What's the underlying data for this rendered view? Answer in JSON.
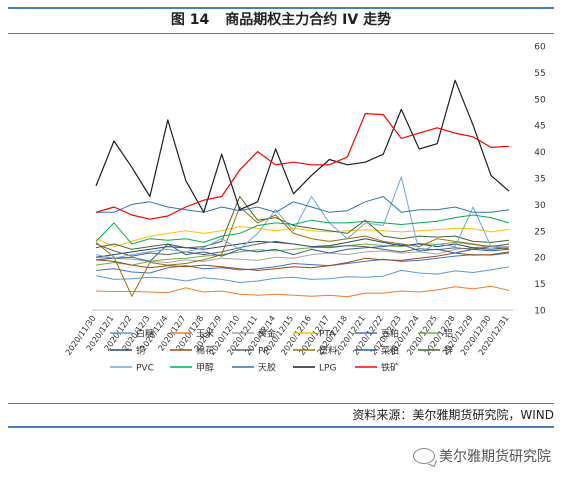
{
  "header": {
    "figure_number": "图 14",
    "title": "商品期权主力合约 IV 走势"
  },
  "footer": {
    "source": "资料来源：美尔雅期货研究院，WIND",
    "watermark": "美尔雅期货研究院"
  },
  "chart_data": {
    "type": "line",
    "ylim": [
      10,
      60
    ],
    "yticks": [
      10,
      15,
      20,
      25,
      30,
      35,
      40,
      45,
      50,
      55,
      60
    ],
    "y_axis_side": "right",
    "grid": false,
    "legend_position": "bottom",
    "categories": [
      "2020/11/30",
      "2020/12/1",
      "2020/12/2",
      "2020/12/3",
      "2020/12/4",
      "2020/12/7",
      "2020/12/8",
      "2020/12/9",
      "2020/12/10",
      "2020/12/11",
      "2020/12/14",
      "2020/12/15",
      "2020/12/16",
      "2020/12/17",
      "2020/12/18",
      "2020/12/21",
      "2020/12/22",
      "2020/12/23",
      "2020/12/24",
      "2020/12/25",
      "2020/12/28",
      "2020/12/29",
      "2020/12/30",
      "2020/12/31"
    ],
    "series": [
      {
        "name": "白糖",
        "color": "#5b9bd5",
        "values": [
          16.5,
          15.8,
          15.9,
          16.2,
          16.0,
          15.5,
          16.1,
          15.8,
          15.2,
          15.5,
          16.0,
          16.2,
          15.8,
          15.9,
          16.3,
          16.2,
          16.4,
          17.5,
          17.0,
          16.8,
          17.4,
          17.1,
          17.6,
          18.2
        ]
      },
      {
        "name": "玉米",
        "color": "#ed7d31",
        "values": [
          13.6,
          13.5,
          13.5,
          13.4,
          13.3,
          14.2,
          13.4,
          13.6,
          13.0,
          12.8,
          13.0,
          12.8,
          12.6,
          12.8,
          12.5,
          13.2,
          13.2,
          13.6,
          13.4,
          13.8,
          14.4,
          14.0,
          14.5,
          13.7
        ]
      },
      {
        "name": "黄金",
        "color": "#a5a5a5",
        "values": [
          20.0,
          19.8,
          19.6,
          19.2,
          19.0,
          19.5,
          19.2,
          19.8,
          19.6,
          19.4,
          20.0,
          19.8,
          20.5,
          20.8,
          20.5,
          21.0,
          21.2,
          20.8,
          21.0,
          20.6,
          21.5,
          21.8,
          22.2,
          22.0
        ]
      },
      {
        "name": "PTA",
        "color": "#ffc000",
        "values": [
          23.5,
          22.0,
          23.0,
          24.0,
          24.5,
          25.0,
          24.5,
          25.0,
          25.8,
          25.5,
          25.0,
          25.5,
          25.0,
          24.8,
          25.0,
          25.2,
          25.0,
          24.8,
          25.0,
          25.2,
          25.5,
          25.4,
          24.8,
          25.3
        ]
      },
      {
        "name": "豆粕",
        "color": "#4472c4",
        "values": [
          17.5,
          17.8,
          17.2,
          17.0,
          18.0,
          18.4,
          17.8,
          18.0,
          17.6,
          17.8,
          18.2,
          18.8,
          18.6,
          18.4,
          18.8,
          19.2,
          19.6,
          19.2,
          19.4,
          19.8,
          20.2,
          20.5,
          20.4,
          20.8
        ]
      },
      {
        "name": "铝",
        "color": "#70ad47",
        "values": [
          18.5,
          19.0,
          18.5,
          19.2,
          19.6,
          19.8,
          20.2,
          20.5,
          21.0,
          21.4,
          21.2,
          21.5,
          21.8,
          22.0,
          22.2,
          22.5,
          22.2,
          22.0,
          22.6,
          22.4,
          22.8,
          22.4,
          22.0,
          22.5
        ]
      },
      {
        "name": "铜",
        "color": "#264478",
        "values": [
          20.0,
          20.5,
          21.0,
          21.5,
          22.0,
          21.8,
          21.5,
          22.0,
          22.5,
          23.0,
          22.8,
          22.5,
          22.0,
          22.2,
          22.8,
          23.5,
          22.8,
          22.2,
          22.5,
          22.0,
          22.5,
          21.8,
          21.5,
          21.8
        ]
      },
      {
        "name": "棉花",
        "color": "#9e480e",
        "values": [
          19.5,
          19.2,
          18.5,
          18.0,
          18.4,
          18.2,
          18.5,
          18.2,
          17.8,
          17.5,
          17.8,
          18.2,
          18.0,
          18.4,
          19.0,
          19.8,
          19.5,
          19.4,
          19.8,
          20.2,
          20.8,
          20.4,
          20.5,
          21.0
        ]
      },
      {
        "name": "PP",
        "color": "#636363",
        "values": [
          22.5,
          21.2,
          20.2,
          20.8,
          20.5,
          21.0,
          20.5,
          21.0,
          21.8,
          22.5,
          23.0,
          22.5,
          22.0,
          21.8,
          22.2,
          22.0,
          21.5,
          21.0,
          21.6,
          21.4,
          21.8,
          21.5,
          22.0,
          22.5
        ]
      },
      {
        "name": "塑料",
        "color": "#997300",
        "values": [
          22.8,
          20.0,
          12.6,
          19.0,
          18.5,
          18.8,
          19.5,
          20.5,
          29.5,
          26.5,
          28.0,
          24.5,
          23.5,
          23.0,
          23.5,
          24.0,
          23.0,
          22.5,
          22.0,
          23.5,
          23.0,
          22.5,
          22.0,
          21.5
        ]
      },
      {
        "name": "菜粕",
        "color": "#2e5e9e",
        "values": [
          19.5,
          19.8,
          20.0,
          19.2,
          22.5,
          20.5,
          21.0,
          20.2,
          21.5,
          21.0,
          21.5,
          20.5,
          21.5,
          20.8,
          21.5,
          21.8,
          22.0,
          22.5,
          21.2,
          21.5,
          20.8,
          21.5,
          21.2,
          21.5
        ]
      },
      {
        "name": "锌",
        "color": "#43682b",
        "values": [
          21.8,
          22.5,
          21.5,
          22.0,
          22.5,
          21.8,
          22.0,
          23.0,
          31.5,
          27.0,
          27.5,
          26.0,
          25.5,
          25.0,
          24.5,
          27.0,
          24.0,
          23.5,
          24.0,
          23.8,
          24.0,
          23.0,
          22.8,
          23.2
        ]
      },
      {
        "name": "PVC",
        "color": "#6fa8dc",
        "values": [
          20.5,
          19.8,
          20.5,
          21.0,
          21.5,
          21.0,
          21.8,
          23.5,
          21.5,
          24.5,
          29.0,
          25.0,
          31.5,
          26.5,
          23.5,
          26.5,
          26.0,
          35.2,
          21.0,
          22.5,
          22.0,
          29.5,
          22.0,
          21.8
        ]
      },
      {
        "name": "甲醇",
        "color": "#00b050",
        "values": [
          23.0,
          26.5,
          22.5,
          23.5,
          23.2,
          23.5,
          22.8,
          24.0,
          24.5,
          26.0,
          26.5,
          26.2,
          27.0,
          26.5,
          26.5,
          26.8,
          26.5,
          26.2,
          26.5,
          26.8,
          27.5,
          28.0,
          27.5,
          26.5
        ]
      },
      {
        "name": "天胶",
        "color": "#2e75b6",
        "values": [
          28.5,
          28.5,
          30.0,
          30.5,
          29.5,
          29.0,
          28.5,
          29.5,
          28.8,
          29.5,
          28.5,
          30.5,
          29.5,
          28.5,
          28.8,
          30.5,
          31.5,
          28.5,
          29.0,
          29.0,
          29.5,
          28.5,
          28.5,
          29.0
        ]
      },
      {
        "name": "LPG",
        "color": "#1f1f1f",
        "values": [
          33.5,
          42.0,
          37.0,
          31.5,
          46.0,
          34.5,
          28.5,
          39.5,
          29.0,
          30.5,
          40.5,
          32.0,
          35.5,
          38.5,
          37.5,
          38.0,
          39.5,
          48.0,
          40.5,
          41.5,
          53.5,
          45.0,
          35.5,
          32.5
        ]
      },
      {
        "name": "铁矿",
        "color": "#ff0000",
        "values": [
          28.5,
          29.5,
          28.0,
          27.2,
          27.8,
          29.5,
          30.8,
          31.5,
          36.5,
          40.0,
          37.5,
          38.0,
          37.5,
          37.5,
          39.0,
          47.2,
          47.0,
          42.5,
          43.5,
          44.5,
          43.5,
          42.8,
          40.8,
          41.0
        ]
      }
    ]
  }
}
